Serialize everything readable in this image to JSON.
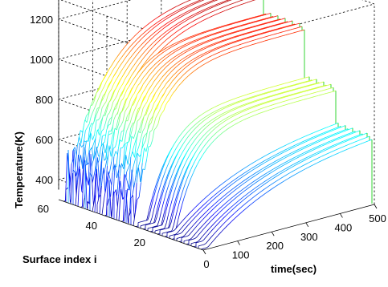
{
  "chart_data": {
    "type": "waterfall-3d",
    "title": "",
    "xlabel": "time(sec)",
    "ylabel": "Surface index i",
    "zlabel": "Temperature(K)",
    "xlim": [
      0,
      500
    ],
    "ylim": [
      0,
      60
    ],
    "zlim": [
      300,
      1300
    ],
    "x_ticks": [
      0,
      100,
      200,
      300,
      400,
      500
    ],
    "x_tick_labels": [
      "0",
      "100",
      "200",
      "300",
      "400",
      "500"
    ],
    "y_ticks": [
      20,
      40,
      60
    ],
    "y_tick_labels": [
      "20",
      "40",
      "60"
    ],
    "z_ticks": [
      400,
      600,
      800,
      1000,
      1200
    ],
    "z_tick_labels": [
      "400",
      "600",
      "800",
      "1000",
      "1200"
    ],
    "grid": true,
    "colormap": "jet",
    "groups": [
      {
        "i_start": 1,
        "i_end": 15,
        "base_K": 300,
        "plateau_K": 660,
        "onset_s": 20,
        "tau_s": 220,
        "osc_amp_K": 0
      },
      {
        "i_start": 16,
        "i_end": 28,
        "base_K": 300,
        "plateau_K": 800,
        "onset_s": 30,
        "tau_s": 65,
        "osc_amp_K": 0
      },
      {
        "i_start": 29,
        "i_end": 45,
        "base_K": 300,
        "plateau_K": 1050,
        "onset_s": 0,
        "tau_s": 70,
        "osc_amp_K": 220
      },
      {
        "i_start": 46,
        "i_end": 58,
        "base_K": 300,
        "plateau_K": 1150,
        "onset_s": 0,
        "tau_s": 110,
        "osc_amp_K": 320
      }
    ],
    "colors": {
      "axis": "#000000",
      "grid": "#000000",
      "edge": "#00cc00"
    }
  }
}
